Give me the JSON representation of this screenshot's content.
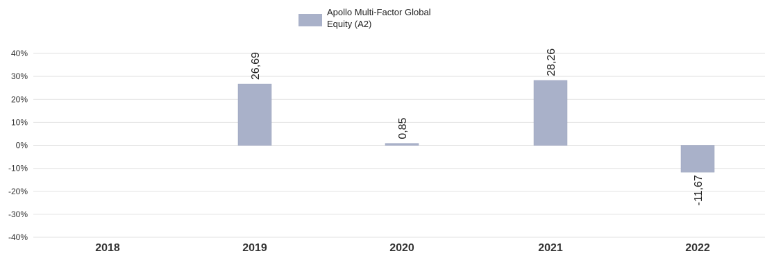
{
  "chart_data": {
    "type": "bar",
    "categories": [
      "2018",
      "2019",
      "2020",
      "2021",
      "2022"
    ],
    "series": [
      {
        "name": "Apollo Multi-Factor Global Equity (A2)",
        "name_lines": [
          "Apollo Multi-Factor Global",
          "Equity (A2)"
        ],
        "values": [
          null,
          26.69,
          0.85,
          28.26,
          -11.67
        ],
        "value_labels": [
          "",
          "26,69",
          "0,85",
          "28,26",
          "-11,67"
        ],
        "color": "#a9b1c9"
      }
    ],
    "ylim": [
      -40,
      40
    ],
    "yticks": [
      40,
      30,
      20,
      10,
      0,
      -10,
      -20,
      -30,
      -40
    ],
    "ytick_labels": [
      "40%",
      "30%",
      "20%",
      "10%",
      "0%",
      "-10%",
      "-20%",
      "-30%",
      "-40%"
    ],
    "grid": true,
    "legend": "top-center",
    "title": "",
    "xlabel": "",
    "ylabel": ""
  }
}
